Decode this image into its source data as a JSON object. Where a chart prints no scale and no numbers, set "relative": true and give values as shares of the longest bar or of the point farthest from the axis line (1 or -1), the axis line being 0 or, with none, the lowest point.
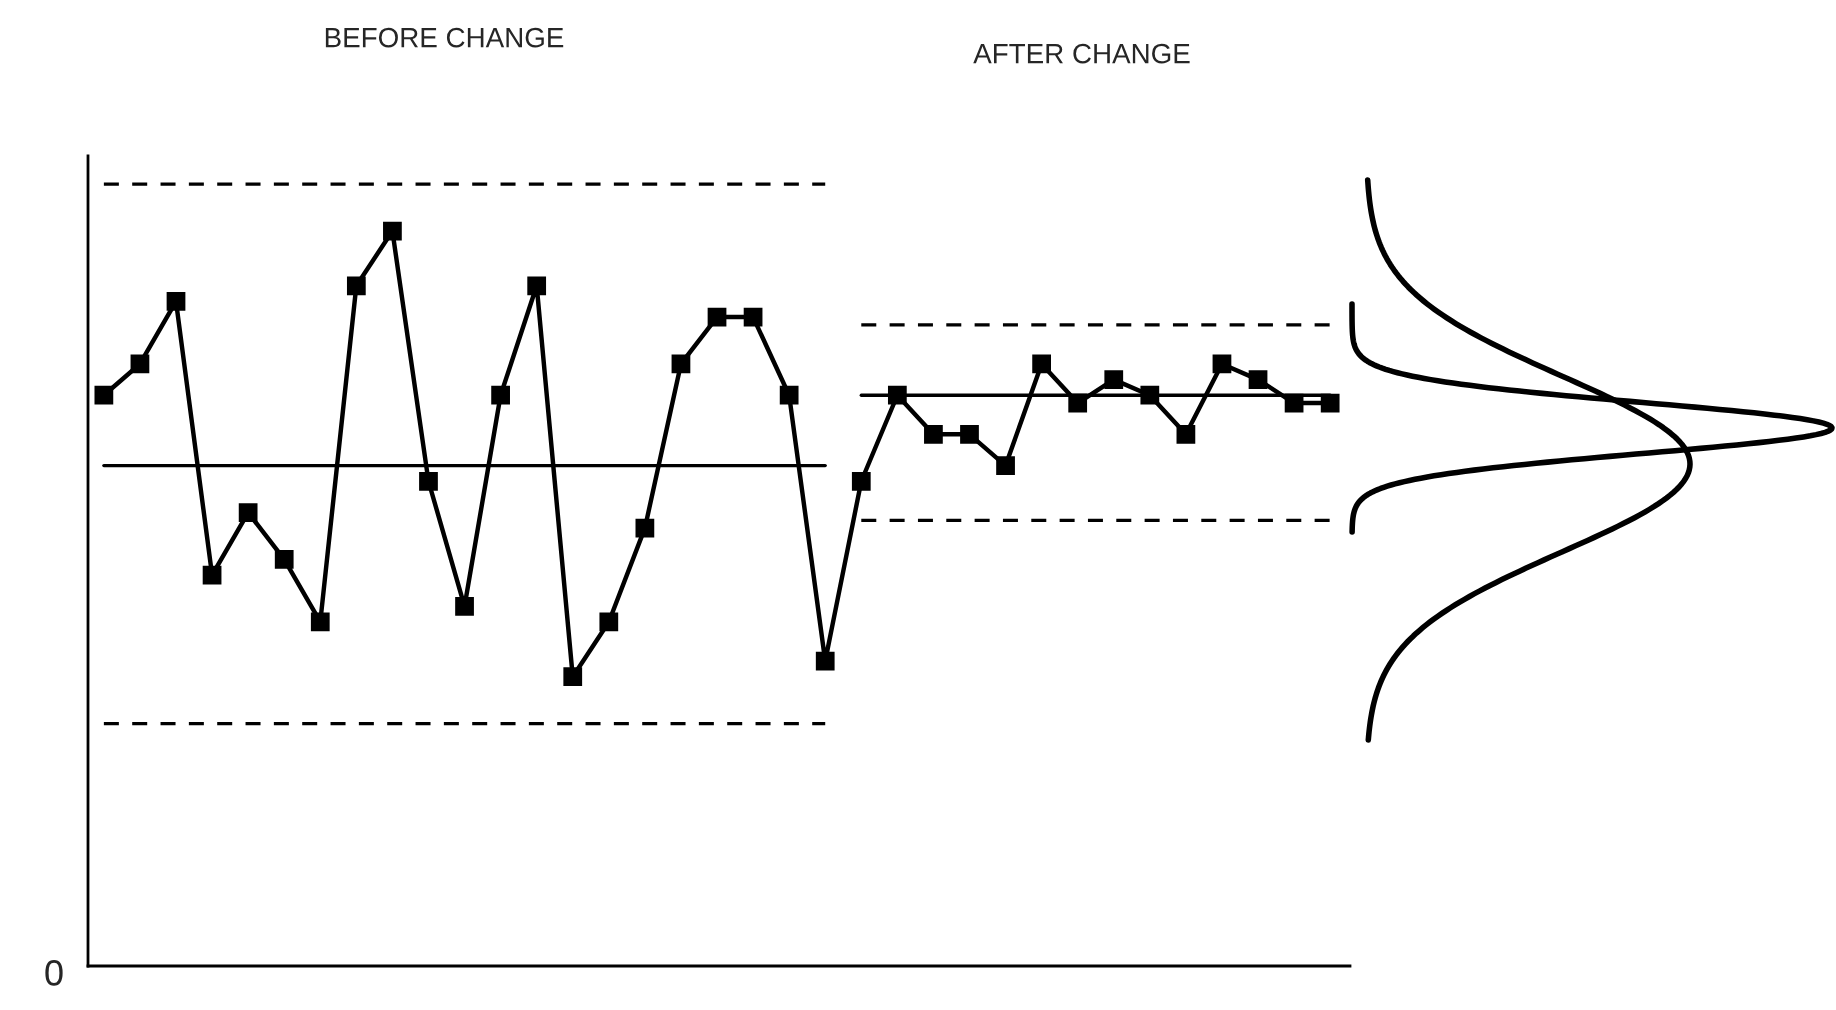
{
  "chart_data": {
    "type": "line",
    "relative": true,
    "marker": "square",
    "categories": [
      null,
      null,
      null,
      null,
      null,
      null,
      null,
      null,
      null,
      null,
      null,
      null,
      null,
      null,
      null,
      null,
      null,
      null,
      null,
      null,
      null,
      null,
      null,
      null,
      null,
      null,
      null,
      null,
      null,
      null,
      null,
      null,
      null,
      null,
      null
    ],
    "annotations": [
      "BEFORE CHANGE",
      "AFTER CHANGE",
      "0"
    ],
    "series": [
      {
        "color": "#000000",
        "values": [
          0.73,
          0.77,
          0.85,
          0.5,
          0.58,
          0.52,
          0.44,
          0.87,
          0.94,
          0.62,
          0.46,
          0.73,
          0.87,
          0.37,
          0.44,
          0.56,
          0.77,
          0.83,
          0.83,
          0.73,
          0.39,
          0.62,
          0.73,
          0.68,
          0.68,
          0.64,
          0.77,
          0.72,
          0.75,
          0.73,
          0.68,
          0.77,
          0.75,
          0.72,
          0.72
        ]
      },
      {
        "color": "#000000",
        "marker": "none",
        "line_style": "solid",
        "values": [
          0.64,
          0.64,
          0.64,
          0.64,
          0.64,
          0.64,
          0.64,
          0.64,
          0.64,
          0.64,
          0.64,
          0.64,
          0.64,
          0.64,
          0.64,
          0.64,
          0.64,
          0.64,
          0.64,
          0.64,
          0.64,
          null,
          null,
          null,
          null,
          null,
          null,
          null,
          null,
          null,
          null,
          null,
          null,
          null,
          null
        ]
      },
      {
        "color": "#000000",
        "marker": "none",
        "line_style": "dashed",
        "values": [
          1.0,
          1.0,
          1.0,
          1.0,
          1.0,
          1.0,
          1.0,
          1.0,
          1.0,
          1.0,
          1.0,
          1.0,
          1.0,
          1.0,
          1.0,
          1.0,
          1.0,
          1.0,
          1.0,
          1.0,
          1.0,
          null,
          null,
          null,
          null,
          null,
          null,
          null,
          null,
          null,
          null,
          null,
          null,
          null,
          null
        ]
      },
      {
        "color": "#000000",
        "marker": "none",
        "line_style": "dashed",
        "values": [
          0.31,
          0.31,
          0.31,
          0.31,
          0.31,
          0.31,
          0.31,
          0.31,
          0.31,
          0.31,
          0.31,
          0.31,
          0.31,
          0.31,
          0.31,
          0.31,
          0.31,
          0.31,
          0.31,
          0.31,
          0.31,
          null,
          null,
          null,
          null,
          null,
          null,
          null,
          null,
          null,
          null,
          null,
          null,
          null,
          null
        ]
      },
      {
        "color": "#000000",
        "marker": "none",
        "line_style": "solid",
        "values": [
          null,
          null,
          null,
          null,
          null,
          null,
          null,
          null,
          null,
          null,
          null,
          null,
          null,
          null,
          null,
          null,
          null,
          null,
          null,
          null,
          null,
          0.73,
          0.73,
          0.73,
          0.73,
          0.73,
          0.73,
          0.73,
          0.73,
          0.73,
          0.73,
          0.73,
          0.73,
          0.73,
          0.73
        ]
      },
      {
        "color": "#000000",
        "marker": "none",
        "line_style": "dashed",
        "values": [
          null,
          null,
          null,
          null,
          null,
          null,
          null,
          null,
          null,
          null,
          null,
          null,
          null,
          null,
          null,
          null,
          null,
          null,
          null,
          null,
          null,
          0.82,
          0.82,
          0.82,
          0.82,
          0.82,
          0.82,
          0.82,
          0.82,
          0.82,
          0.82,
          0.82,
          0.82,
          0.82,
          0.82
        ]
      },
      {
        "color": "#000000",
        "marker": "none",
        "line_style": "dashed",
        "values": [
          null,
          null,
          null,
          null,
          null,
          null,
          null,
          null,
          null,
          null,
          null,
          null,
          null,
          null,
          null,
          null,
          null,
          null,
          null,
          null,
          null,
          0.57,
          0.57,
          0.57,
          0.57,
          0.57,
          0.57,
          0.57,
          0.57,
          0.57,
          0.57,
          0.57,
          0.57,
          0.57,
          0.57
        ]
      }
    ]
  }
}
